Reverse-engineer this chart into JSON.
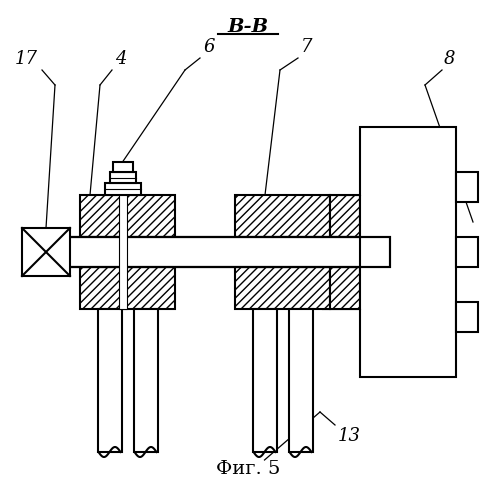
{
  "title": "В-В",
  "fig_caption": "Фиг. 5",
  "bg_color": "#ffffff",
  "line_color": "#000000",
  "lw": 1.5
}
